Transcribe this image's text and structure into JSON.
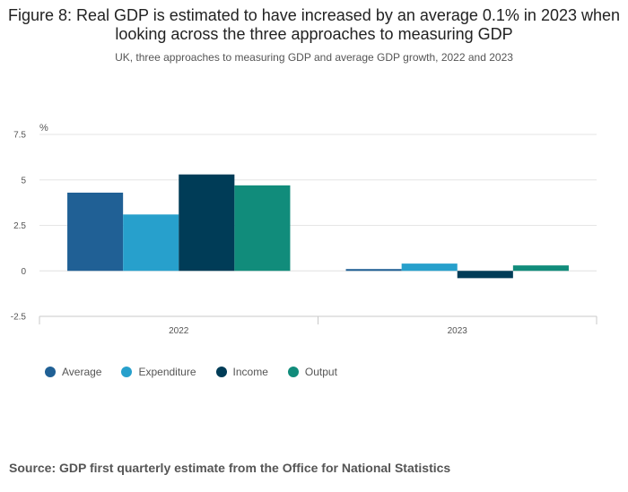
{
  "title": "Figure 8: Real GDP is estimated to have increased by an average 0.1% in 2023 when looking across the three approaches to measuring GDP",
  "subtitle": "UK, three approaches to measuring GDP and average GDP growth, 2022 and 2023",
  "source": "Source: GDP first quarterly estimate from the Office for National Statistics",
  "chart_data": {
    "type": "bar",
    "title": "Figure 8: Real GDP is estimated to have increased by an average 0.1% in 2023 when looking across the three approaches to measuring GDP",
    "subtitle": "UK, three approaches to measuring GDP and average GDP growth, 2022 and 2023",
    "unit_label": "%",
    "xlabel": "",
    "ylabel": "%",
    "categories": [
      "2022",
      "2023"
    ],
    "ylim": [
      -2.5,
      7.5
    ],
    "yticks": [
      "7.5",
      "5",
      "2.5",
      "0",
      "-2.5"
    ],
    "ytick_values": [
      7.5,
      5,
      2.5,
      0,
      -2.5
    ],
    "grid": true,
    "legend_position": "bottom-left",
    "series": [
      {
        "name": "Average",
        "color": "#206095",
        "values": [
          4.3,
          0.1
        ]
      },
      {
        "name": "Expenditure",
        "color": "#27a0cc",
        "values": [
          3.1,
          0.4
        ]
      },
      {
        "name": "Income",
        "color": "#003c57",
        "values": [
          5.3,
          -0.4
        ]
      },
      {
        "name": "Output",
        "color": "#118c7b",
        "values": [
          4.7,
          0.3
        ]
      }
    ]
  }
}
